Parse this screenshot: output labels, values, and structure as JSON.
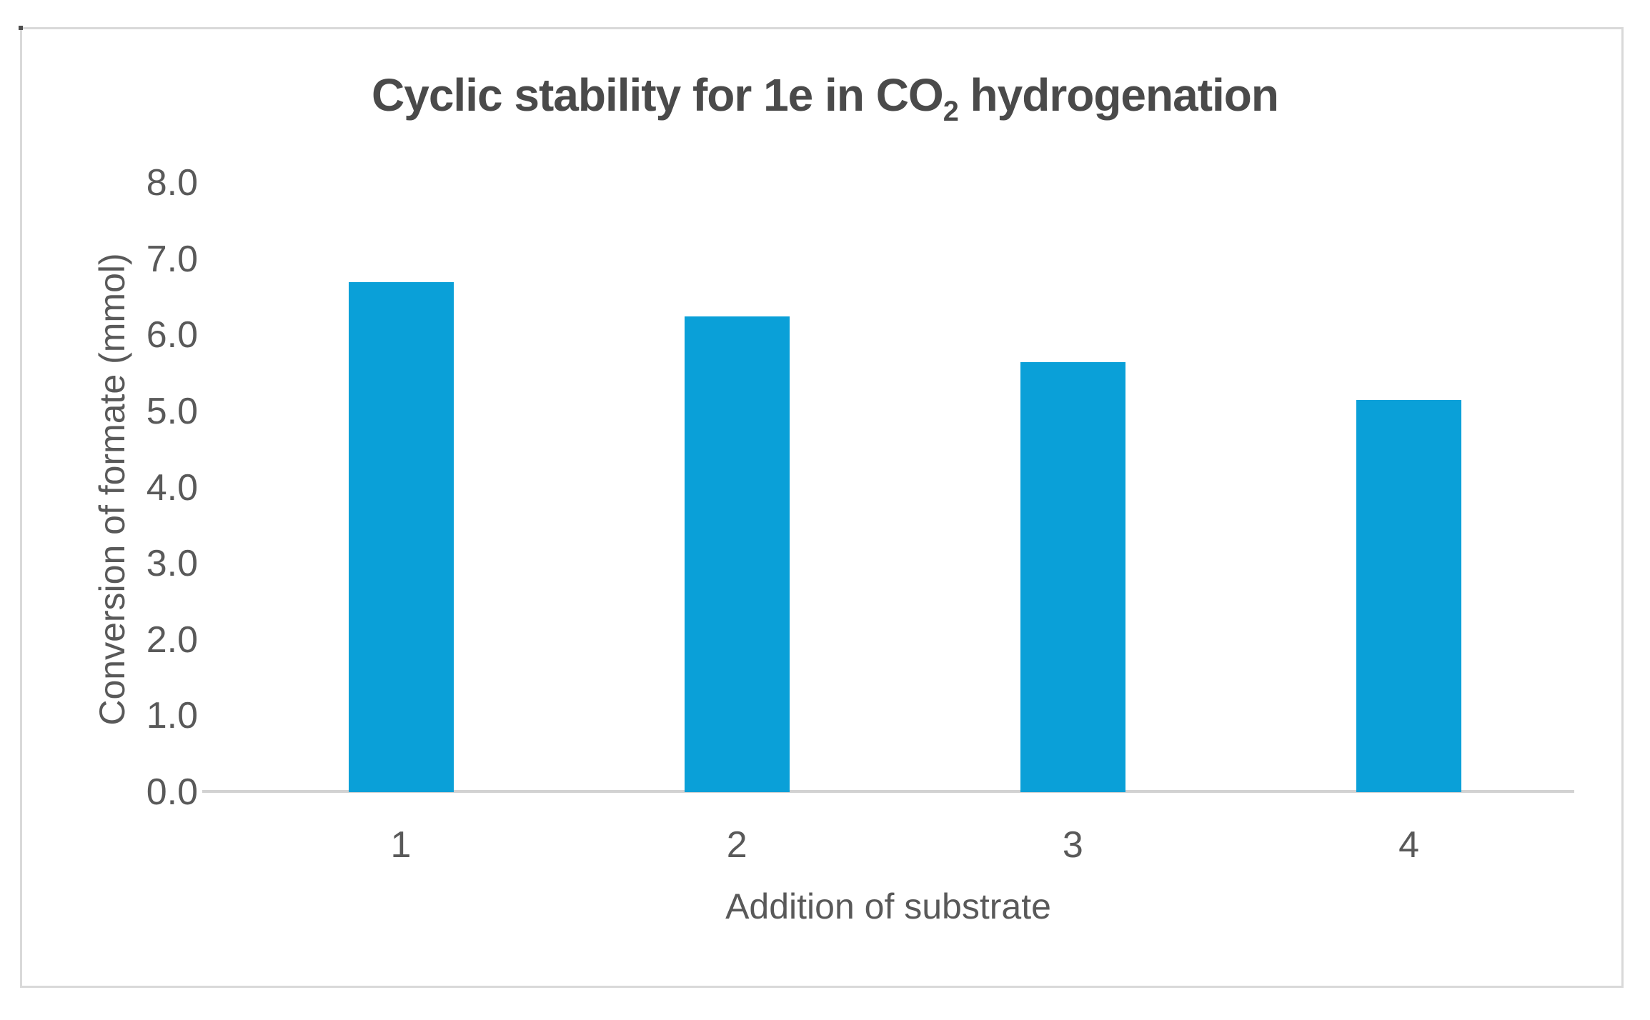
{
  "figure": {
    "title": {
      "prefix": "Cyclic stability for 1e in CO",
      "subscript": "2",
      "suffix": " hydrogenation"
    }
  },
  "chart_data": {
    "type": "bar",
    "title": "Cyclic stability for 1e in CO2 hydrogenation",
    "xlabel": "Addition of substrate",
    "ylabel": "Conversion of formate (mmol)",
    "categories": [
      "1",
      "2",
      "3",
      "4"
    ],
    "values": [
      6.7,
      6.25,
      5.65,
      5.15
    ],
    "ylim": [
      0.0,
      8.0
    ],
    "ytick_step": 1.0,
    "ytick_labels": [
      "0.0",
      "1.0",
      "2.0",
      "3.0",
      "4.0",
      "5.0",
      "6.0",
      "7.0",
      "8.0"
    ],
    "grid": false,
    "legend": "none",
    "colors": {
      "bar": "#0aa0d8",
      "axis_line": "#d2d2d2",
      "text": "#595959",
      "title": "#4a4a4a",
      "figure_border": "#d9d9d9"
    }
  }
}
